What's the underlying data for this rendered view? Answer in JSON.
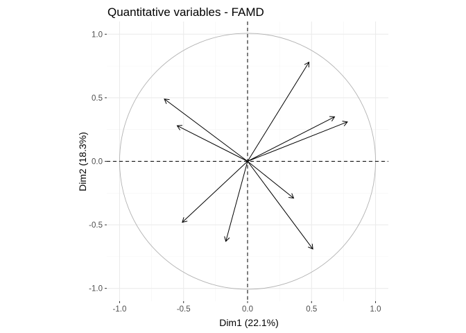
{
  "chart_data": {
    "type": "scatter",
    "subtype": "correlation-circle",
    "title": "Quantitative variables - FAMD",
    "xlabel": "Dim1 (22.1%)",
    "ylabel": "Dim2 (18.3%)",
    "xlim": [
      -1.1,
      1.1
    ],
    "ylim": [
      -1.1,
      1.1
    ],
    "xticks": [
      -1.0,
      -0.5,
      0.0,
      0.5,
      1.0
    ],
    "xtick_labels": [
      "-1.0",
      "-0.5",
      "0.0",
      "0.5",
      "1.0"
    ],
    "yticks": [
      -1.0,
      -0.5,
      0.0,
      0.5,
      1.0
    ],
    "ytick_labels": [
      "-1.0",
      "-0.5",
      "0.0",
      "0.5",
      "1.0"
    ],
    "grid": true,
    "unit_circle": true,
    "reference_lines": "dashed lines at x=0 and y=0",
    "variables": [
      {
        "x": 0.48,
        "y": 0.78
      },
      {
        "x": 0.68,
        "y": 0.35
      },
      {
        "x": 0.78,
        "y": 0.31
      },
      {
        "x": -0.65,
        "y": 0.49
      },
      {
        "x": -0.55,
        "y": 0.28
      },
      {
        "x": 0.36,
        "y": -0.29
      },
      {
        "x": 0.51,
        "y": -0.69
      },
      {
        "x": -0.17,
        "y": -0.63
      },
      {
        "x": -0.51,
        "y": -0.48
      }
    ],
    "colors": {
      "arrow": "#000000",
      "circle": "#b3b3b3",
      "grid": "#ebebeb"
    }
  }
}
